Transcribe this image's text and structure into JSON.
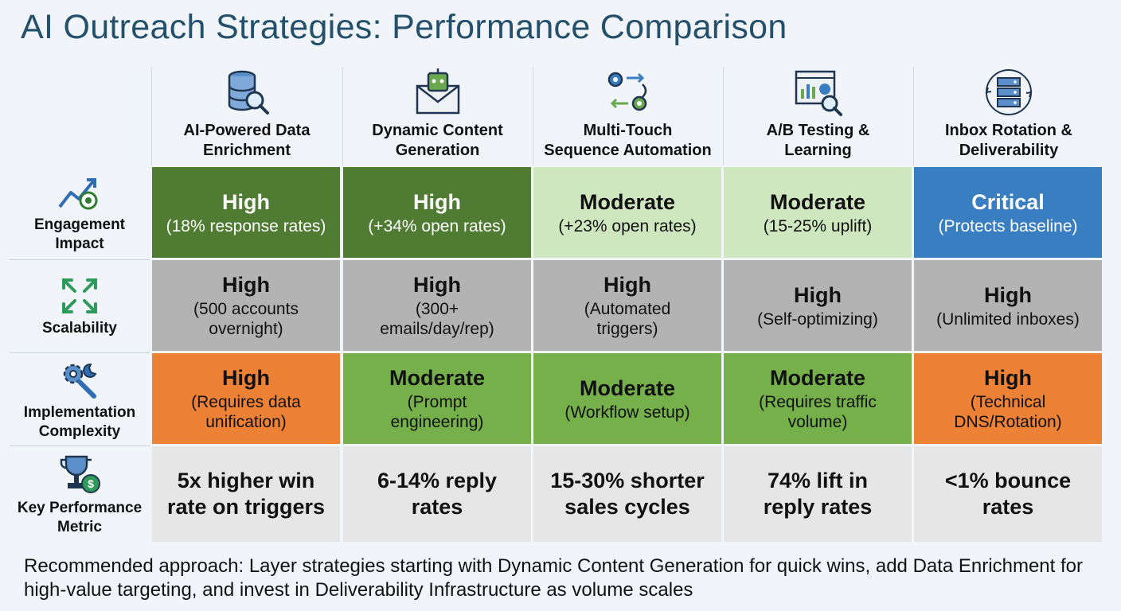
{
  "title": "AI Outreach Strategies: Performance Comparison",
  "columns": [
    {
      "label": "AI-Powered Data\nEnrichment",
      "icon": "database-search-icon"
    },
    {
      "label": "Dynamic Content\nGeneration",
      "icon": "robot-envelope-icon"
    },
    {
      "label": "Multi-Touch\nSequence Automation",
      "icon": "gears-arrows-icon"
    },
    {
      "label": "A/B Testing &\nLearning",
      "icon": "dashboard-magnifier-icon"
    },
    {
      "label": "Inbox Rotation &\nDeliverability",
      "icon": "server-rotation-icon"
    }
  ],
  "rows": [
    {
      "label": "Engagement\nImpact",
      "icon": "trend-target-icon",
      "cells": [
        {
          "main": "High",
          "detail": "(18% response rates)",
          "bg": "#4f7b33",
          "color": "#ffffff"
        },
        {
          "main": "High",
          "detail": "(+34% open rates)",
          "bg": "#4f7b33",
          "color": "#ffffff"
        },
        {
          "main": "Moderate",
          "detail": "(+23% open rates)",
          "bg": "#cfe7be",
          "color": "#111111"
        },
        {
          "main": "Moderate",
          "detail": "(15-25% uplift)",
          "bg": "#cfe7be",
          "color": "#111111"
        },
        {
          "main": "Critical",
          "detail": "(Protects baseline)",
          "bg": "#3a7ec2",
          "color": "#ffffff"
        }
      ]
    },
    {
      "label": "Scalability",
      "icon": "expand-arrows-icon",
      "cells": [
        {
          "main": "High",
          "detail": "(500 accounts\novernight)",
          "bg": "#b3b3b3",
          "color": "#111111"
        },
        {
          "main": "High",
          "detail": "(300+\nemails/day/rep)",
          "bg": "#b3b3b3",
          "color": "#111111"
        },
        {
          "main": "High",
          "detail": "(Automated\ntriggers)",
          "bg": "#b3b3b3",
          "color": "#111111"
        },
        {
          "main": "High",
          "detail": "(Self-optimizing)",
          "bg": "#b3b3b3",
          "color": "#111111"
        },
        {
          "main": "High",
          "detail": "(Unlimited inboxes)",
          "bg": "#b3b3b3",
          "color": "#111111"
        }
      ]
    },
    {
      "label": "Implementation\nComplexity",
      "icon": "gear-wrench-icon",
      "cells": [
        {
          "main": "High",
          "detail": "(Requires data\nunification)",
          "bg": "#ed8136",
          "color": "#111111"
        },
        {
          "main": "Moderate",
          "detail": "(Prompt\nengineering)",
          "bg": "#76b04b",
          "color": "#111111"
        },
        {
          "main": "Moderate",
          "detail": "(Workflow setup)",
          "bg": "#76b04b",
          "color": "#111111"
        },
        {
          "main": "Moderate",
          "detail": "(Requires traffic\nvolume)",
          "bg": "#76b04b",
          "color": "#111111"
        },
        {
          "main": "High",
          "detail": "(Technical\nDNS/Rotation)",
          "bg": "#ed8136",
          "color": "#111111"
        }
      ]
    },
    {
      "label": "Key Performance\nMetric",
      "icon": "trophy-dollar-icon",
      "cells": [
        {
          "main": "5x higher win\nrate on triggers",
          "bg": "#e6e6e6",
          "color": "#111111"
        },
        {
          "main": "6-14% reply\nrates",
          "bg": "#e6e6e6",
          "color": "#111111"
        },
        {
          "main": "15-30% shorter\nsales cycles",
          "bg": "#e6e6e6",
          "color": "#111111"
        },
        {
          "main": "74% lift in\nreply rates",
          "bg": "#e6e6e6",
          "color": "#111111"
        },
        {
          "main": "<1% bounce\nrates",
          "bg": "#e6e6e6",
          "color": "#111111"
        }
      ]
    }
  ],
  "footer": "Recommended approach: Layer strategies starting with Dynamic Content Generation for quick wins, add Data Enrichment for high-value targeting, and invest in Deliverability Infrastructure as volume scales"
}
